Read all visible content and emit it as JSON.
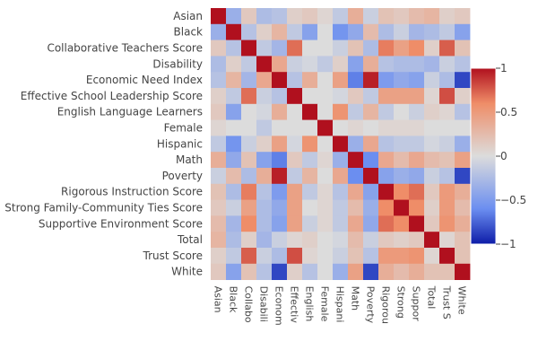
{
  "chart_data": {
    "type": "heatmap",
    "title": "",
    "xlabel": "",
    "ylabel": "",
    "variables": [
      "Asian",
      "Black",
      "Collaborative Teachers Score",
      "Disability",
      "Economic Need Index",
      "Effective School Leadership Score",
      "English Language Learners",
      "Female",
      "Hispanic",
      "Math",
      "Poverty",
      "Rigorous Instruction Score",
      "Strong Family-Community Ties Score",
      "Supportive Environment Score",
      "Total",
      "Trust Score",
      "White"
    ],
    "x_tick_labels": [
      "Asian",
      "Black",
      "Collabo",
      "Disabili",
      "Econom",
      "Effectiv",
      "English",
      "Female",
      "Hispani",
      "Math",
      "Poverty",
      "Rigorou",
      "Strong",
      "Suppor",
      "Total",
      "Trust S",
      "White"
    ],
    "z": [
      [
        1.0,
        -0.35,
        0.15,
        -0.25,
        -0.2,
        0.1,
        0.15,
        0.05,
        -0.15,
        0.35,
        -0.1,
        0.2,
        0.15,
        0.25,
        0.3,
        0.1,
        0.15
      ],
      [
        -0.35,
        1.0,
        -0.2,
        0.1,
        0.3,
        -0.15,
        -0.45,
        0.0,
        -0.55,
        -0.4,
        0.25,
        -0.25,
        -0.1,
        -0.3,
        -0.25,
        -0.15,
        -0.45
      ],
      [
        0.15,
        -0.2,
        1.0,
        -0.15,
        -0.3,
        0.7,
        0.0,
        0.0,
        -0.1,
        0.2,
        -0.25,
        0.65,
        0.45,
        0.6,
        0.1,
        0.75,
        0.2
      ],
      [
        -0.25,
        0.1,
        -0.15,
        1.0,
        0.4,
        -0.1,
        -0.05,
        -0.15,
        0.1,
        -0.45,
        0.35,
        -0.2,
        -0.25,
        -0.25,
        -0.3,
        -0.1,
        -0.2
      ],
      [
        -0.2,
        0.3,
        -0.3,
        0.4,
        1.0,
        -0.2,
        0.35,
        0.0,
        0.45,
        -0.65,
        0.95,
        -0.5,
        -0.4,
        -0.45,
        -0.1,
        -0.25,
        -0.85
      ],
      [
        0.1,
        -0.15,
        0.7,
        -0.1,
        -0.2,
        1.0,
        0.0,
        0.0,
        -0.05,
        0.15,
        -0.15,
        0.45,
        0.45,
        0.45,
        0.05,
        0.8,
        0.1
      ],
      [
        0.15,
        -0.45,
        0.0,
        -0.05,
        0.35,
        0.0,
        1.0,
        0.0,
        0.55,
        -0.15,
        0.3,
        -0.15,
        0.0,
        -0.1,
        0.1,
        0.05,
        -0.2
      ],
      [
        0.05,
        0.0,
        0.0,
        -0.15,
        0.0,
        0.0,
        0.0,
        1.0,
        0.0,
        0.05,
        0.0,
        0.05,
        0.05,
        0.05,
        0.0,
        0.0,
        0.0
      ],
      [
        -0.15,
        -0.55,
        -0.1,
        0.1,
        0.45,
        -0.05,
        0.55,
        0.0,
        1.0,
        -0.35,
        0.4,
        -0.2,
        -0.15,
        -0.15,
        -0.05,
        -0.1,
        -0.35
      ],
      [
        0.35,
        -0.4,
        0.2,
        -0.45,
        -0.65,
        0.15,
        -0.15,
        0.05,
        -0.35,
        1.0,
        -0.6,
        0.4,
        0.25,
        0.4,
        0.25,
        0.2,
        0.45
      ],
      [
        -0.1,
        0.25,
        -0.25,
        0.35,
        0.95,
        -0.15,
        0.3,
        0.0,
        0.4,
        -0.6,
        1.0,
        -0.45,
        -0.35,
        -0.4,
        -0.1,
        -0.2,
        -0.85
      ],
      [
        0.2,
        -0.25,
        0.65,
        -0.2,
        -0.5,
        0.45,
        -0.15,
        0.05,
        -0.2,
        0.4,
        -0.45,
        1.0,
        0.6,
        0.7,
        0.15,
        0.5,
        0.35
      ],
      [
        0.15,
        -0.1,
        0.45,
        -0.25,
        -0.4,
        0.45,
        0.0,
        0.05,
        -0.15,
        0.25,
        -0.35,
        0.6,
        1.0,
        0.6,
        0.1,
        0.5,
        0.25
      ],
      [
        0.25,
        -0.3,
        0.6,
        -0.25,
        -0.45,
        0.45,
        -0.1,
        0.05,
        -0.15,
        0.4,
        -0.4,
        0.7,
        0.6,
        1.0,
        0.15,
        0.55,
        0.35
      ],
      [
        0.3,
        -0.25,
        0.1,
        -0.3,
        -0.1,
        0.05,
        0.1,
        0.0,
        -0.05,
        0.25,
        -0.1,
        0.15,
        0.1,
        0.15,
        1.0,
        0.05,
        0.2
      ],
      [
        0.1,
        -0.15,
        0.75,
        -0.1,
        -0.25,
        0.8,
        0.05,
        0.0,
        -0.1,
        0.2,
        -0.2,
        0.5,
        0.5,
        0.55,
        0.05,
        1.0,
        0.2
      ],
      [
        0.15,
        -0.45,
        0.2,
        -0.2,
        -0.85,
        0.1,
        -0.2,
        0.0,
        -0.35,
        0.45,
        -0.85,
        0.35,
        0.25,
        0.35,
        0.2,
        0.2,
        1.0
      ]
    ],
    "colorscale": "coolwarm",
    "zmin": -1,
    "zmax": 1,
    "colorbar": {
      "ticks": [
        1,
        0.5,
        0,
        -0.5,
        -1
      ],
      "tick_labels": [
        "1",
        "0.5",
        "0",
        "−0.5",
        "−1"
      ]
    },
    "grid": false,
    "legend": "colorbar-right"
  }
}
